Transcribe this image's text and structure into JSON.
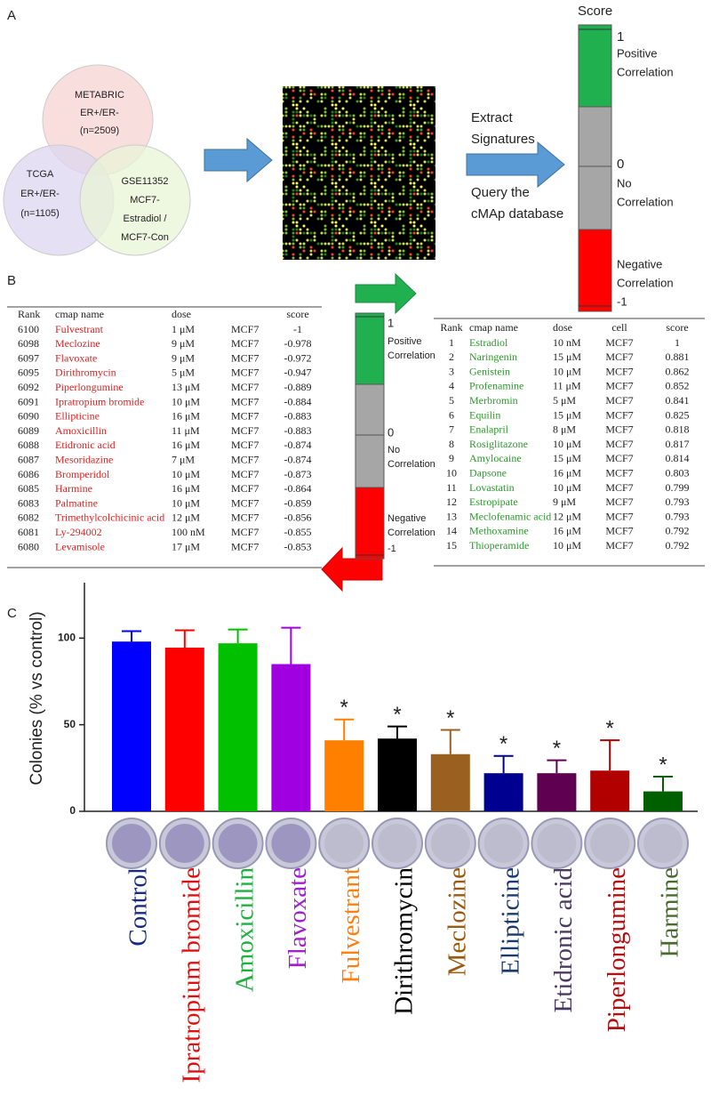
{
  "panel_a": {
    "label": "A",
    "venn": {
      "metabric": [
        "METABRIC",
        "ER+/ER-",
        "(n=2509)"
      ],
      "tcga": [
        "TCGA",
        "ER+/ER-",
        "(n=1105)"
      ],
      "gse": [
        "GSE11352",
        "MCF7-",
        "Estradiol /",
        "MCF7-Con"
      ]
    },
    "step_top": [
      "Extract",
      "Signatures"
    ],
    "step_bottom": [
      "Query the",
      "cMAp database"
    ],
    "score_bar": {
      "title": "Score",
      "top_value": "1",
      "top_label": [
        "Positive",
        "Correlation"
      ],
      "mid_value": "0",
      "mid_label": [
        "No",
        "Correlation"
      ],
      "bottom_label": [
        "Negative",
        "Correlation"
      ],
      "bottom_value": "-1"
    }
  },
  "panel_b": {
    "label": "B",
    "negative_table": {
      "headers": {
        "rank": "Rank",
        "name": "cmap name",
        "dose": "dose",
        "score": "score"
      },
      "rows": [
        [
          "6100",
          "Fulvestrant",
          "1 μM",
          "MCF7",
          "-1"
        ],
        [
          "6098",
          "Meclozine",
          "9 μM",
          "MCF7",
          "-0.978"
        ],
        [
          "6097",
          "Flavoxate",
          "9 μM",
          "MCF7",
          "-0.972"
        ],
        [
          "6095",
          "Dirithromycin",
          "5 μM",
          "MCF7",
          "-0.947"
        ],
        [
          "6092",
          "Piperlongumine",
          "13 μM",
          "MCF7",
          "-0.889"
        ],
        [
          "6091",
          "Ipratropium bromide",
          "10 μM",
          "MCF7",
          "-0.884"
        ],
        [
          "6090",
          "Ellipticine",
          "16 μM",
          "MCF7",
          "-0.883"
        ],
        [
          "6089",
          "Amoxicillin",
          "11 μM",
          "MCF7",
          "-0.883"
        ],
        [
          "6088",
          "Etidronic acid",
          "16 μM",
          "MCF7",
          "-0.874"
        ],
        [
          "6087",
          "Mesoridazine",
          "7 μM",
          "MCF7",
          "-0.874"
        ],
        [
          "6086",
          "Bromperidol",
          "10 μM",
          "MCF7",
          "-0.873"
        ],
        [
          "6085",
          "Harmine",
          "16 μM",
          "MCF7",
          "-0.864"
        ],
        [
          "6083",
          "Palmatine",
          "10 μM",
          "MCF7",
          "-0.859"
        ],
        [
          "6082",
          "Trimethylcolchicinic acid",
          "12 μM",
          "MCF7",
          "-0.856"
        ],
        [
          "6081",
          "Ly-294002",
          "100 nM",
          "MCF7",
          "-0.855"
        ],
        [
          "6080",
          "Levamisole",
          "17 μM",
          "MCF7",
          "-0.853"
        ]
      ]
    },
    "score_bar": {
      "top_value": "1",
      "top_label": [
        "Positive",
        "Correlation"
      ],
      "mid_value": "0",
      "mid_label": [
        "No",
        "Correlation"
      ],
      "bottom_label": [
        "Negative",
        "Correlation"
      ],
      "bottom_value": "-1"
    },
    "positive_table": {
      "headers": {
        "rank": "Rank",
        "name": "cmap name",
        "dose": "dose",
        "cell": "cell",
        "score": "score"
      },
      "rows": [
        [
          "1",
          "Estradiol",
          "10 nM",
          "MCF7",
          "1"
        ],
        [
          "2",
          "Naringenin",
          "15 μM",
          "MCF7",
          "0.881"
        ],
        [
          "3",
          "Genistein",
          "10 μM",
          "MCF7",
          "0.862"
        ],
        [
          "4",
          "Profenamine",
          "11 μM",
          "MCF7",
          "0.852"
        ],
        [
          "5",
          "Merbromin",
          "5 μM",
          "MCF7",
          "0.841"
        ],
        [
          "6",
          "Equilin",
          "15 μM",
          "MCF7",
          "0.825"
        ],
        [
          "7",
          "Enalapril",
          "8 μM",
          "MCF7",
          "0.818"
        ],
        [
          "8",
          "Rosiglitazone",
          "10 μM",
          "MCF7",
          "0.817"
        ],
        [
          "9",
          "Amylocaine",
          "15 μM",
          "MCF7",
          "0.814"
        ],
        [
          "10",
          "Dapsone",
          "16 μM",
          "MCF7",
          "0.803"
        ],
        [
          "11",
          "Lovastatin",
          "10 μM",
          "MCF7",
          "0.799"
        ],
        [
          "12",
          "Estropipate",
          "9 μM",
          "MCF7",
          "0.793"
        ],
        [
          "13",
          "Meclofenamic acid",
          "12 μM",
          "MCF7",
          "0.793"
        ],
        [
          "14",
          "Methoxamine",
          "16 μM",
          "MCF7",
          "0.792"
        ],
        [
          "15",
          "Thioperamide",
          "10 μM",
          "MCF7",
          "0.792"
        ]
      ]
    }
  },
  "chart_data": {
    "type": "bar",
    "panel_label": "C",
    "y_label": "Colonies (% vs control)",
    "categories": [
      "Control",
      "Ipratropium bromide",
      "Amoxicillin",
      "Flavoxate",
      "Fulvestrant",
      "Dirithromycin",
      "Meclozine",
      "Ellipticine",
      "Etidronic acid",
      "Piperlongumine",
      "Harmine"
    ],
    "values": [
      98,
      94.5,
      97,
      85,
      41,
      42,
      33,
      22,
      22,
      23.5,
      11.5
    ],
    "errors": [
      6,
      10,
      8,
      21,
      12,
      7,
      14,
      10,
      7.5,
      17.5,
      8.5
    ],
    "colors": [
      "#0000ff",
      "#ff0000",
      "#00c000",
      "#a000e0",
      "#ff8000",
      "#000000",
      "#9a6020",
      "#000090",
      "#600050",
      "#b00000",
      "#006000"
    ],
    "label_colors": [
      "#1a2a80",
      "#e01010",
      "#20b040",
      "#a020d0",
      "#ff8010",
      "#000000",
      "#9a5a10",
      "#1a3a70",
      "#4a3a60",
      "#b01010",
      "#4a6a30"
    ],
    "significance": [
      null,
      null,
      null,
      null,
      "*",
      "*",
      "*",
      "*",
      "*",
      "*",
      "*"
    ],
    "ylim": [
      0,
      132
    ],
    "yticks": [
      0,
      50,
      100
    ]
  }
}
